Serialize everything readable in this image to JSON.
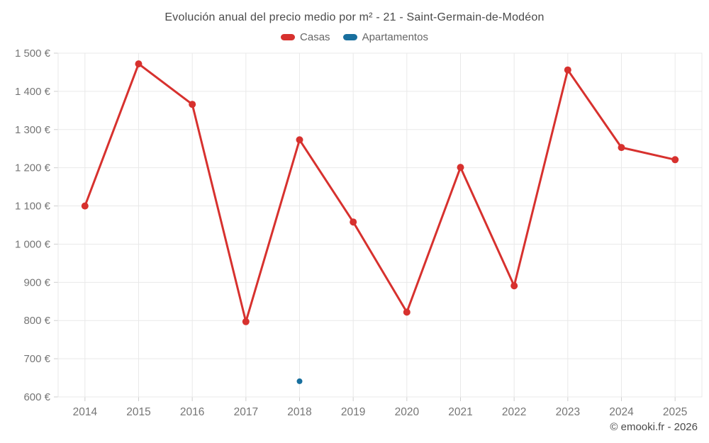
{
  "chart_data": {
    "type": "line",
    "title": "Evolución anual del precio medio por m² - 21 - Saint-Germain-de-Modéon",
    "categories": [
      "2014",
      "2015",
      "2016",
      "2017",
      "2018",
      "2019",
      "2020",
      "2021",
      "2022",
      "2023",
      "2024",
      "2025"
    ],
    "series": [
      {
        "name": "Casas",
        "color": "#d7312e",
        "marker_radius": 5,
        "values": [
          1100,
          1472,
          1366,
          797,
          1273,
          1058,
          822,
          1201,
          891,
          1456,
          1253,
          1221
        ]
      },
      {
        "name": "Apartamentos",
        "color": "#186f9e",
        "marker_radius": 4,
        "values": [
          null,
          null,
          null,
          null,
          641,
          null,
          null,
          null,
          null,
          null,
          null,
          null
        ]
      }
    ],
    "xlabel": "",
    "ylabel": "",
    "ylim": [
      600,
      1500
    ],
    "ytick_step": 100,
    "ytick_suffix": " €",
    "grid": true,
    "legend_position": "top",
    "axis_text_color": "#757575",
    "grid_color": "#e9e9e9",
    "tick_color": "#cfcfcf",
    "line_width": 3
  },
  "watermark": "© emooki.fr - 2026"
}
